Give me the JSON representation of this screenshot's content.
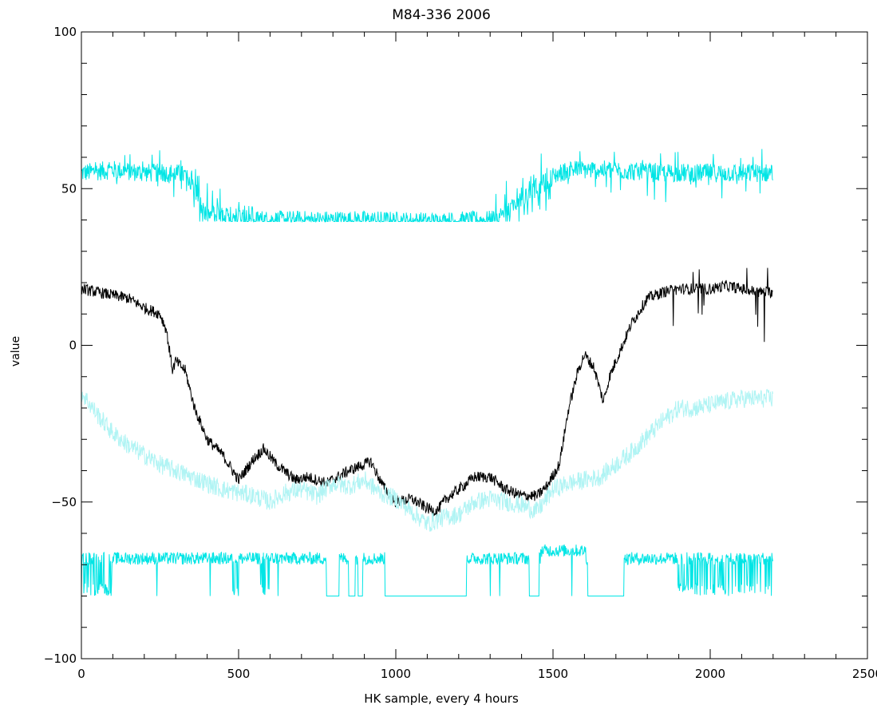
{
  "chart_data": {
    "type": "line",
    "title": "M84-336 2006",
    "xlabel": "HK sample, every 4 hours",
    "ylabel": "value",
    "xlim": [
      0,
      2500
    ],
    "ylim": [
      -100,
      100
    ],
    "x_ticks": [
      0,
      500,
      1000,
      1500,
      2000,
      2500
    ],
    "y_ticks": [
      -100,
      -50,
      0,
      50,
      100
    ],
    "grid": false,
    "series": [
      {
        "color": "#00e5e5",
        "style": "noisy",
        "noise": 3,
        "x": [
          0,
          100,
          200,
          300,
          340,
          360,
          390,
          450,
          550,
          580,
          620,
          700,
          900,
          1100,
          1300,
          1350,
          1400,
          1450,
          1500,
          1550,
          1600,
          1700,
          1800,
          1900,
          2000,
          2100,
          2200
        ],
        "y": [
          55,
          56,
          55,
          55,
          54,
          50,
          42,
          41,
          41,
          40,
          40,
          40,
          40,
          39.5,
          40,
          42,
          46,
          50,
          54,
          56,
          56,
          56,
          55,
          55,
          55,
          55,
          55
        ]
      },
      {
        "color": "#000000",
        "style": "noisy",
        "noise": 1.8,
        "x": [
          0,
          50,
          100,
          150,
          200,
          250,
          270,
          290,
          300,
          330,
          360,
          400,
          450,
          500,
          550,
          580,
          620,
          680,
          720,
          780,
          850,
          900,
          920,
          960,
          1000,
          1050,
          1100,
          1130,
          1160,
          1200,
          1250,
          1300,
          1350,
          1400,
          1450,
          1480,
          1520,
          1550,
          1580,
          1600,
          1630,
          1660,
          1680,
          1700,
          1750,
          1800,
          1850,
          1900,
          1950,
          2000,
          2050,
          2100,
          2150,
          2200
        ],
        "y": [
          18,
          17,
          16,
          15,
          12,
          10,
          5,
          -8,
          -5,
          -8,
          -20,
          -30,
          -35,
          -43,
          -36,
          -33,
          -38,
          -43,
          -42,
          -44,
          -40,
          -38,
          -37,
          -45,
          -50,
          -49,
          -52,
          -53,
          -49,
          -46,
          -42,
          -42,
          -46,
          -48,
          -48,
          -45,
          -38,
          -20,
          -8,
          -3,
          -7,
          -18,
          -10,
          -5,
          7,
          15,
          17,
          18,
          18,
          18,
          19,
          18,
          17,
          17
        ]
      },
      {
        "color": "#b0f4f4",
        "style": "noisy",
        "noise": 3,
        "x": [
          0,
          50,
          100,
          150,
          200,
          250,
          300,
          350,
          400,
          450,
          500,
          550,
          600,
          650,
          700,
          750,
          800,
          850,
          900,
          950,
          1000,
          1050,
          1100,
          1150,
          1200,
          1250,
          1300,
          1350,
          1400,
          1450,
          1500,
          1550,
          1600,
          1650,
          1700,
          1750,
          1800,
          1850,
          1900,
          1950,
          2000,
          2050,
          2100,
          2150,
          2200
        ],
        "y": [
          -15,
          -22,
          -28,
          -32,
          -35,
          -38,
          -40,
          -42,
          -44,
          -46,
          -47,
          -48,
          -50,
          -47,
          -46,
          -48,
          -44,
          -45,
          -43,
          -47,
          -49,
          -53,
          -57,
          -55,
          -54,
          -50,
          -49,
          -50,
          -51,
          -53,
          -46,
          -44,
          -43,
          -42,
          -38,
          -34,
          -29,
          -24,
          -20,
          -20,
          -19,
          -18,
          -17,
          -17,
          -17
        ]
      },
      {
        "color": "#00e5e5",
        "style": "baseline",
        "noise": 2,
        "base": -68,
        "floor": -80,
        "x": [
          0,
          2200
        ],
        "y": [
          -68,
          -68
        ],
        "floor_ranges": [
          [
            780,
            820
          ],
          [
            850,
            870
          ],
          [
            880,
            895
          ],
          [
            965,
            1225
          ],
          [
            1425,
            1455
          ],
          [
            1610,
            1725
          ]
        ],
        "spike_ranges": [
          [
            0,
            100
          ],
          [
            480,
            500
          ],
          [
            570,
            600
          ],
          [
            1880,
            2200
          ]
        ],
        "spike_density": 0.35,
        "sparse_spikes": [
          240,
          410,
          500,
          625,
          1070,
          1300,
          1330,
          1560
        ]
      }
    ]
  }
}
